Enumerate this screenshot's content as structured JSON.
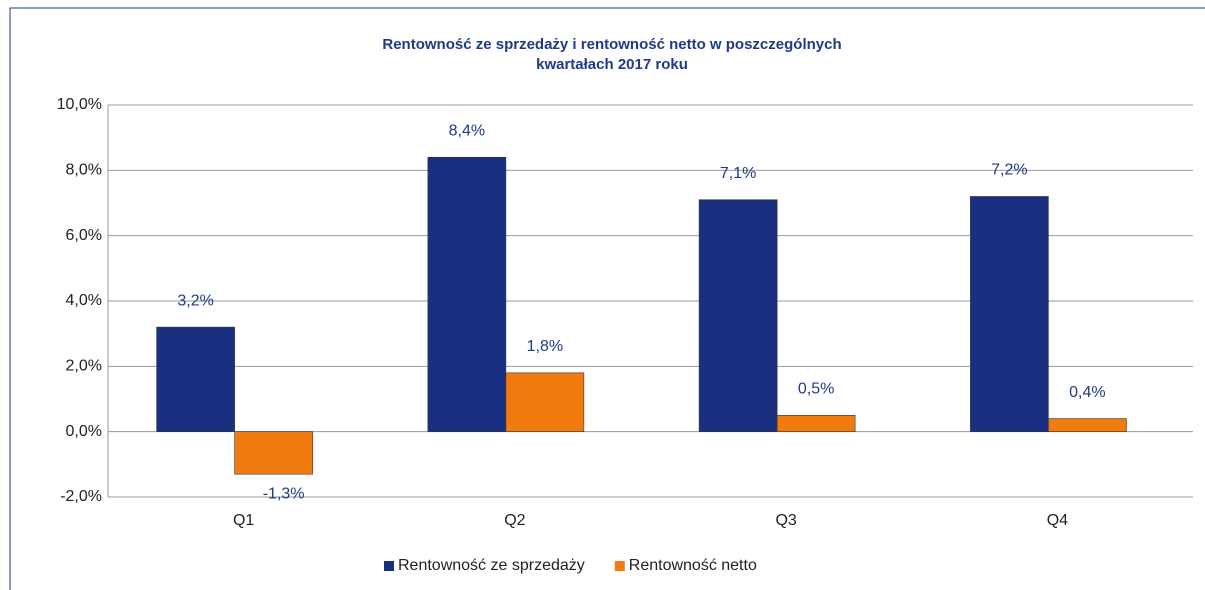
{
  "chart_data": {
    "type": "bar",
    "title": [
      "Rentowność ze sprzedaży i rentowność netto w poszczególnych",
      "kwartałach  2017 roku"
    ],
    "categories": [
      "Q1",
      "Q2",
      "Q3",
      "Q4"
    ],
    "series": [
      {
        "name": "Rentowność ze sprzedaży",
        "color": "#1a2f80",
        "values": [
          3.2,
          8.4,
          7.1,
          7.2
        ],
        "value_labels": [
          "3,2%",
          "8,4%",
          "7,1%",
          "7,2%"
        ]
      },
      {
        "name": "Rentowność netto",
        "color": "#f07b0f",
        "values": [
          -1.3,
          1.8,
          0.5,
          0.4
        ],
        "value_labels": [
          "-1,3%",
          "1,8%",
          "0,5%",
          "0,4%"
        ]
      }
    ],
    "ylim": [
      -2,
      10
    ],
    "yticks": [
      {
        "value": -2,
        "label": "-2,0%"
      },
      {
        "value": 0,
        "label": "0,0%"
      },
      {
        "value": 2,
        "label": "2,0%"
      },
      {
        "value": 4,
        "label": "4,0%"
      },
      {
        "value": 6,
        "label": "6,0%"
      },
      {
        "value": 8,
        "label": "8,0%"
      },
      {
        "value": 10,
        "label": "10,0%"
      }
    ],
    "grid": true,
    "legend": "bottom"
  }
}
